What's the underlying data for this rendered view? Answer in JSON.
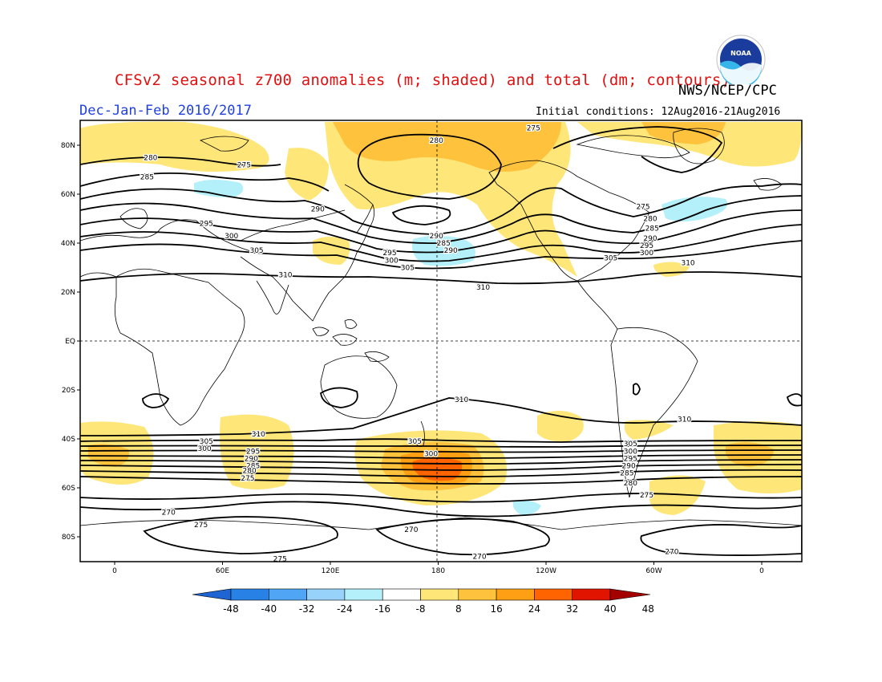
{
  "title": "CFSv2 seasonal z700 anomalies (m; shaded) and total (dm; contours)",
  "agency": "NWS/NCEP/CPC",
  "season": "Dec-Jan-Feb 2016/2017",
  "initial_conditions": "Initial conditions: 12Aug2016-21Aug2016",
  "logo_text": "NOAA",
  "lat_labels": [
    "80N",
    "60N",
    "40N",
    "20N",
    "EQ",
    "20S",
    "40S",
    "60S",
    "80S"
  ],
  "lon_labels": [
    "0",
    "60E",
    "120E",
    "180",
    "120W",
    "60W",
    "0"
  ],
  "colorbar": {
    "ticks": [
      "-48",
      "-40",
      "-32",
      "-24",
      "-16",
      "-8",
      "8",
      "16",
      "24",
      "32",
      "40",
      "48"
    ],
    "colors": [
      "#1e64d2",
      "#2882e6",
      "#50a5f5",
      "#96d2fa",
      "#b4f0fa",
      "#ffffff",
      "#ffe678",
      "#ffc23c",
      "#ffa014",
      "#ff6400",
      "#e11400",
      "#a50000"
    ]
  },
  "contour_labels": [
    {
      "text": "280",
      "lon": 20,
      "lat": 75
    },
    {
      "text": "285",
      "lon": 18,
      "lat": 67
    },
    {
      "text": "275",
      "lon": 72,
      "lat": 72
    },
    {
      "text": "290",
      "lon": 113,
      "lat": 54
    },
    {
      "text": "295",
      "lon": 51,
      "lat": 48
    },
    {
      "text": "300",
      "lon": 65,
      "lat": 43
    },
    {
      "text": "305",
      "lon": 79,
      "lat": 37
    },
    {
      "text": "310",
      "lon": 95,
      "lat": 27
    },
    {
      "text": "280",
      "lon": 179,
      "lat": 82
    },
    {
      "text": "275",
      "lon": 233,
      "lat": 87
    },
    {
      "text": "290",
      "lon": 179,
      "lat": 43
    },
    {
      "text": "285",
      "lon": 183,
      "lat": 40
    },
    {
      "text": "290",
      "lon": 187,
      "lat": 37
    },
    {
      "text": "295",
      "lon": 153,
      "lat": 36
    },
    {
      "text": "300",
      "lon": 154,
      "lat": 33
    },
    {
      "text": "305",
      "lon": 163,
      "lat": 30
    },
    {
      "text": "310",
      "lon": 205,
      "lat": 22
    },
    {
      "text": "305",
      "lon": 276,
      "lat": 34
    },
    {
      "text": "310",
      "lon": 319,
      "lat": 32
    },
    {
      "text": "275",
      "lon": 294,
      "lat": 55
    },
    {
      "text": "280",
      "lon": 298,
      "lat": 50
    },
    {
      "text": "285",
      "lon": 299,
      "lat": 46
    },
    {
      "text": "290",
      "lon": 298,
      "lat": 42
    },
    {
      "text": "295",
      "lon": 296,
      "lat": 39
    },
    {
      "text": "300",
      "lon": 296,
      "lat": 36
    },
    {
      "text": "310",
      "lon": 193,
      "lat": -24
    },
    {
      "text": "310",
      "lon": 317,
      "lat": -32
    },
    {
      "text": "310",
      "lon": 80,
      "lat": -38
    },
    {
      "text": "305",
      "lon": 51,
      "lat": -41
    },
    {
      "text": "300",
      "lon": 50,
      "lat": -44
    },
    {
      "text": "295",
      "lon": 77,
      "lat": -45
    },
    {
      "text": "290",
      "lon": 76,
      "lat": -48
    },
    {
      "text": "285",
      "lon": 77,
      "lat": -51
    },
    {
      "text": "280",
      "lon": 75,
      "lat": -53
    },
    {
      "text": "275",
      "lon": 74,
      "lat": -56
    },
    {
      "text": "305",
      "lon": 167,
      "lat": -41
    },
    {
      "text": "300",
      "lon": 176,
      "lat": -46
    },
    {
      "text": "305",
      "lon": 287,
      "lat": -42
    },
    {
      "text": "300",
      "lon": 287,
      "lat": -45
    },
    {
      "text": "295",
      "lon": 287,
      "lat": -48
    },
    {
      "text": "290",
      "lon": 286,
      "lat": -51
    },
    {
      "text": "285",
      "lon": 285,
      "lat": -54
    },
    {
      "text": "280",
      "lon": 287,
      "lat": -58
    },
    {
      "text": "275",
      "lon": 296,
      "lat": -63
    },
    {
      "text": "270",
      "lon": 30,
      "lat": -70
    },
    {
      "text": "275",
      "lon": 48,
      "lat": -75
    },
    {
      "text": "270",
      "lon": 165,
      "lat": -77
    },
    {
      "text": "275",
      "lon": 92,
      "lat": -89
    },
    {
      "text": "270",
      "lon": 203,
      "lat": -88
    },
    {
      "text": "270",
      "lon": 310,
      "lat": -86
    }
  ]
}
